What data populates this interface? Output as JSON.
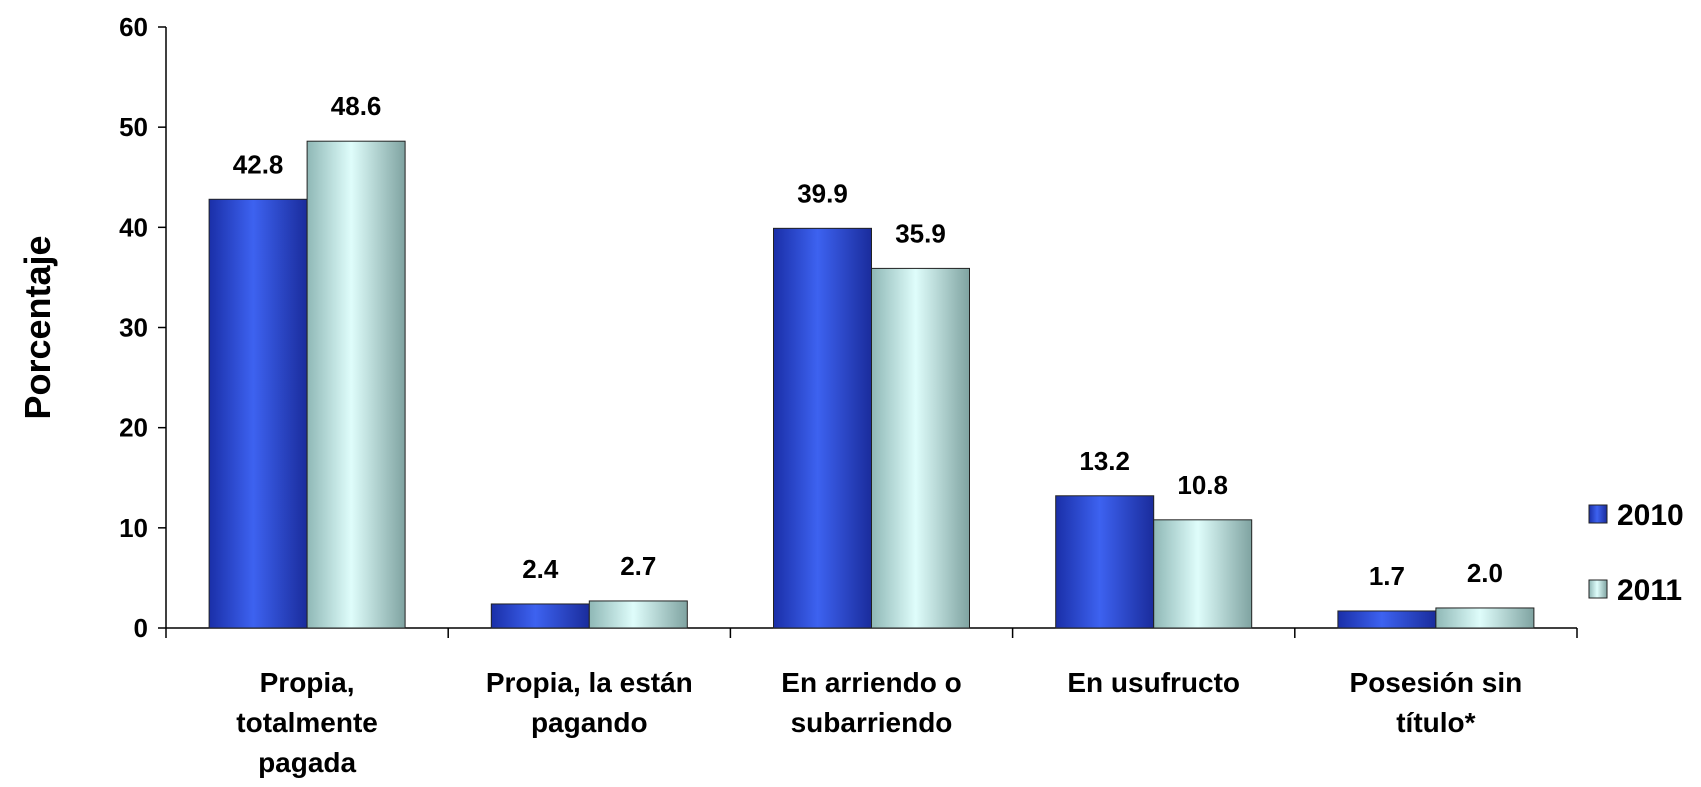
{
  "chart_data": {
    "type": "bar",
    "ylabel": "Porcentaje",
    "ylim": [
      0,
      60
    ],
    "yticks": [
      0,
      10,
      20,
      30,
      40,
      50,
      60
    ],
    "grid": false,
    "legend_position": "right",
    "categories": [
      [
        "Propia,",
        "totalmente",
        "pagada"
      ],
      [
        "Propia, la están",
        "pagando"
      ],
      [
        "En arriendo o",
        "subarriendo"
      ],
      [
        "En usufructo"
      ],
      [
        "Posesión sin",
        "título*"
      ]
    ],
    "series": [
      {
        "name": "2010",
        "color": "#2a48d8",
        "values": [
          42.8,
          2.4,
          39.9,
          13.2,
          1.7
        ],
        "labels": [
          "42.8",
          "2.4",
          "39.9",
          "13.2",
          "1.7"
        ]
      },
      {
        "name": "2011",
        "color": "#c8f4f2",
        "values": [
          48.6,
          2.7,
          35.9,
          10.8,
          2.0
        ],
        "labels": [
          "48.6",
          "2.7",
          "35.9",
          "10.8",
          "2.0"
        ]
      }
    ]
  }
}
